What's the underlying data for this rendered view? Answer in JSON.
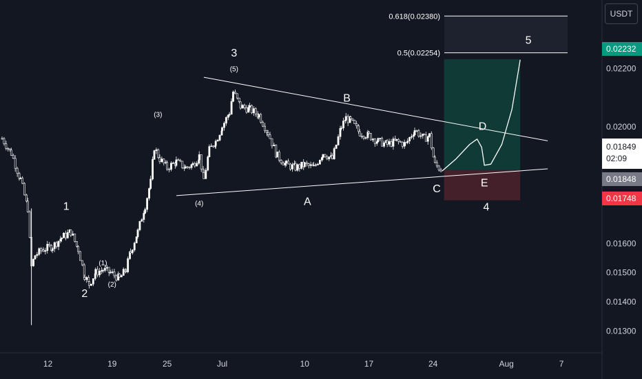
{
  "currency": "USDT",
  "price_scale": {
    "ticks": [
      {
        "value": 0.022,
        "label": "0.02200"
      },
      {
        "value": 0.02,
        "label": "0.02000"
      },
      {
        "value": 0.016,
        "label": "0.01600"
      },
      {
        "value": 0.015,
        "label": "0.01500"
      },
      {
        "value": 0.014,
        "label": "0.01400"
      },
      {
        "value": 0.013,
        "label": "0.01300"
      }
    ]
  },
  "price_labels": {
    "target": "0.02232",
    "current": "0.01849",
    "countdown": "02:09",
    "previous": "0.01848",
    "stop": "0.01748"
  },
  "time_axis": [
    {
      "day": 12,
      "label": "12"
    },
    {
      "day": 19,
      "label": "19"
    },
    {
      "day": 25,
      "label": "25"
    },
    {
      "day": 31,
      "label": "Jul"
    },
    {
      "day": 40,
      "label": "10"
    },
    {
      "day": 47,
      "label": "17"
    },
    {
      "day": 54,
      "label": "24"
    },
    {
      "day": 62,
      "label": "Aug"
    },
    {
      "day": 68,
      "label": "7"
    }
  ],
  "fib_levels": [
    {
      "label": "0.618(0.02380)",
      "price": 0.0238
    },
    {
      "label": "0.5(0.02254)",
      "price": 0.02254
    }
  ],
  "wave_labels": [
    {
      "text": "1",
      "day": 14,
      "price": 0.01715,
      "size": "big"
    },
    {
      "text": "2",
      "day": 16,
      "price": 0.01417,
      "size": "big"
    },
    {
      "text": "(1)",
      "day": 18,
      "price": 0.01525,
      "size": "small"
    },
    {
      "text": "(2)",
      "day": 19,
      "price": 0.01452,
      "size": "small"
    },
    {
      "text": "(3)",
      "day": 24,
      "price": 0.02035,
      "size": "small"
    },
    {
      "text": "3",
      "day": 32.3,
      "price": 0.02241,
      "size": "big"
    },
    {
      "text": "(5)",
      "day": 32.3,
      "price": 0.0219,
      "size": "small"
    },
    {
      "text": "(4)",
      "day": 28.5,
      "price": 0.0173,
      "size": "small"
    },
    {
      "text": "A",
      "day": 40.3,
      "price": 0.01732,
      "size": "big"
    },
    {
      "text": "B",
      "day": 44.6,
      "price": 0.02086,
      "size": "big"
    },
    {
      "text": "C",
      "day": 54.4,
      "price": 0.01776,
      "size": "big"
    },
    {
      "text": "D",
      "day": 59.4,
      "price": 0.0199,
      "size": "big"
    },
    {
      "text": "E",
      "day": 59.6,
      "price": 0.01796,
      "size": "big"
    },
    {
      "text": "4",
      "day": 59.8,
      "price": 0.01713,
      "size": "big"
    },
    {
      "text": "5",
      "day": 64.4,
      "price": 0.02285,
      "size": "big"
    }
  ],
  "chart_data": {
    "type": "candlestick",
    "x_unit": "days since Jun 1",
    "ylim": [
      0.01225,
      0.02435
    ],
    "xlim": [
      7,
      71
    ],
    "series": [
      {
        "name": "price",
        "values": [
          [
            7.0,
            0.0196
          ],
          [
            8.0,
            0.0191
          ],
          [
            9.0,
            0.0182
          ],
          [
            9.8,
            0.0172
          ],
          [
            10.2,
            0.0152
          ],
          [
            10.6,
            0.0156
          ],
          [
            11.5,
            0.0158
          ],
          [
            12.5,
            0.0159
          ],
          [
            13.5,
            0.0162
          ],
          [
            14.5,
            0.0164
          ],
          [
            15.3,
            0.0158
          ],
          [
            16.0,
            0.0149
          ],
          [
            16.5,
            0.0146
          ],
          [
            17.2,
            0.015
          ],
          [
            18.0,
            0.0151
          ],
          [
            18.8,
            0.015
          ],
          [
            19.8,
            0.0148
          ],
          [
            20.5,
            0.0151
          ],
          [
            21.0,
            0.0157
          ],
          [
            21.8,
            0.0164
          ],
          [
            22.6,
            0.0173
          ],
          [
            23.2,
            0.0181
          ],
          [
            23.6,
            0.0193
          ],
          [
            24.2,
            0.0189
          ],
          [
            25.0,
            0.0186
          ],
          [
            26.0,
            0.0188
          ],
          [
            27.0,
            0.0186
          ],
          [
            27.8,
            0.0187
          ],
          [
            28.5,
            0.019
          ],
          [
            29.0,
            0.0182
          ],
          [
            29.6,
            0.0192
          ],
          [
            30.3,
            0.0195
          ],
          [
            31.0,
            0.02
          ],
          [
            31.8,
            0.0205
          ],
          [
            32.2,
            0.0212
          ],
          [
            33.0,
            0.0207
          ],
          [
            34.0,
            0.0206
          ],
          [
            35.0,
            0.0204
          ],
          [
            36.0,
            0.0198
          ],
          [
            37.0,
            0.019
          ],
          [
            38.0,
            0.0187
          ],
          [
            39.0,
            0.0186
          ],
          [
            40.0,
            0.0187
          ],
          [
            41.0,
            0.0186
          ],
          [
            42.0,
            0.0191
          ],
          [
            43.0,
            0.0189
          ],
          [
            44.0,
            0.02
          ],
          [
            44.5,
            0.0203
          ],
          [
            45.0,
            0.0202
          ],
          [
            46.0,
            0.0198
          ],
          [
            47.0,
            0.0197
          ],
          [
            48.0,
            0.0195
          ],
          [
            49.0,
            0.0194
          ],
          [
            50.0,
            0.0195
          ],
          [
            51.0,
            0.0194
          ],
          [
            52.0,
            0.0199
          ],
          [
            53.0,
            0.0196
          ],
          [
            53.6,
            0.0197
          ],
          [
            54.2,
            0.0187
          ],
          [
            55.0,
            0.0185
          ]
        ]
      }
    ],
    "trendlines": [
      {
        "name": "upper",
        "from": [
          29.0,
          0.0217
        ],
        "to": [
          66.5,
          0.01952
        ]
      },
      {
        "name": "lower",
        "from": [
          26.0,
          0.01764
        ],
        "to": [
          66.5,
          0.01856
        ]
      }
    ],
    "position": {
      "entry": 0.01852,
      "target": 0.02232,
      "stop": 0.01748,
      "start_day": 55.2,
      "end_day": 63.5
    },
    "projection": [
      [
        55.0,
        0.01849
      ],
      [
        56.5,
        0.0189
      ],
      [
        58.0,
        0.0194
      ],
      [
        58.8,
        0.01958
      ],
      [
        59.3,
        0.0193
      ],
      [
        59.6,
        0.01868
      ],
      [
        60.3,
        0.01872
      ],
      [
        61.5,
        0.0194
      ],
      [
        62.6,
        0.0206
      ],
      [
        63.5,
        0.0223
      ]
    ],
    "colors": {
      "up": "#ffffff",
      "down": "#ffffff",
      "target_zone": "#0f3a35",
      "stop_zone": "#43202a",
      "fib_zone": "#1e212e",
      "lines": "#ffffff"
    },
    "grid": false
  }
}
